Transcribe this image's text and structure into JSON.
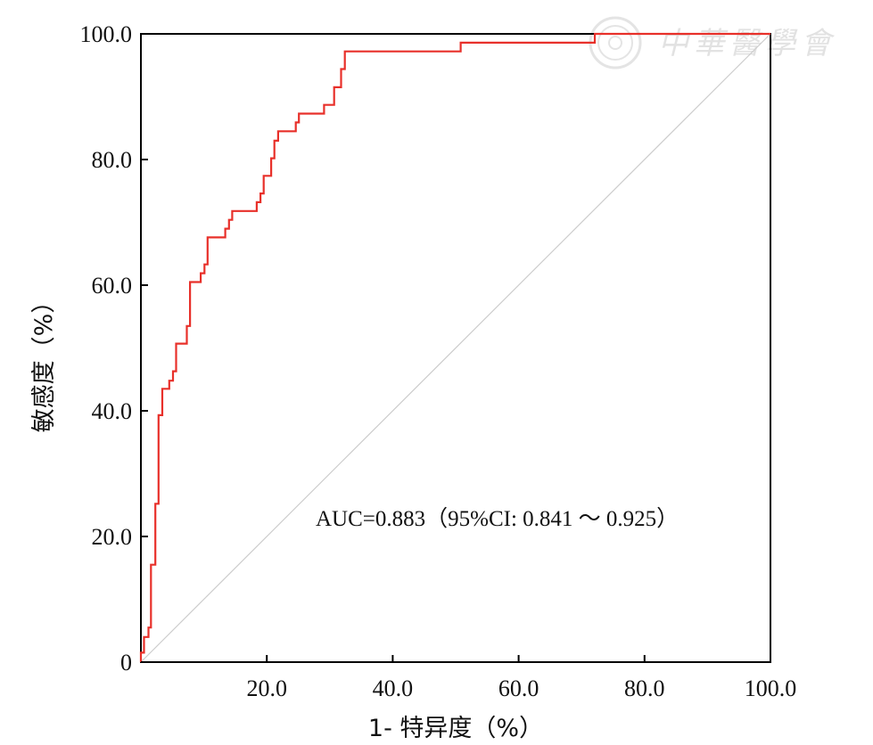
{
  "chart_data": {
    "type": "line",
    "xlabel": "1- 特异度（%）",
    "ylabel": "敏感度（%）",
    "xlim": [
      0,
      100
    ],
    "ylim": [
      0,
      100
    ],
    "x_ticks": [
      {
        "value": 20,
        "label": "20.0"
      },
      {
        "value": 40,
        "label": "40.0"
      },
      {
        "value": 60,
        "label": "60.0"
      },
      {
        "value": 80,
        "label": "80.0"
      },
      {
        "value": 100,
        "label": "100.0"
      }
    ],
    "y_ticks": [
      {
        "value": 0,
        "label": "0"
      },
      {
        "value": 20,
        "label": "20.0"
      },
      {
        "value": 40,
        "label": "40.0"
      },
      {
        "value": 60,
        "label": "60.0"
      },
      {
        "value": 80,
        "label": "80.0"
      },
      {
        "value": 100,
        "label": "100.0"
      }
    ],
    "grid": false,
    "annotation": "AUC=0.883（95%CI: 0.841 ～ 0.925）",
    "series": [
      {
        "color": "#e8302a",
        "step": true,
        "points": [
          [
            0,
            0
          ],
          [
            0,
            1.5
          ],
          [
            0.5,
            1.5
          ],
          [
            0.5,
            4
          ],
          [
            1.2,
            4
          ],
          [
            1.2,
            5.5
          ],
          [
            1.6,
            5.5
          ],
          [
            1.6,
            15.5
          ],
          [
            2.3,
            15.5
          ],
          [
            2.3,
            25.2
          ],
          [
            2.8,
            25.2
          ],
          [
            2.8,
            39.3
          ],
          [
            3.4,
            39.3
          ],
          [
            3.4,
            43.5
          ],
          [
            4.5,
            43.5
          ],
          [
            4.5,
            44.8
          ],
          [
            5.1,
            44.8
          ],
          [
            5.1,
            46.3
          ],
          [
            5.6,
            46.3
          ],
          [
            5.6,
            50.7
          ],
          [
            7.3,
            50.7
          ],
          [
            7.3,
            53.5
          ],
          [
            7.8,
            53.5
          ],
          [
            7.8,
            60.5
          ],
          [
            9.5,
            60.5
          ],
          [
            9.5,
            61.9
          ],
          [
            10.1,
            61.9
          ],
          [
            10.1,
            63.3
          ],
          [
            10.6,
            63.3
          ],
          [
            10.6,
            67.6
          ],
          [
            13.4,
            67.6
          ],
          [
            13.4,
            69
          ],
          [
            14,
            69
          ],
          [
            14,
            70.4
          ],
          [
            14.5,
            70.4
          ],
          [
            14.5,
            71.8
          ],
          [
            18.4,
            71.8
          ],
          [
            18.4,
            73.2
          ],
          [
            19,
            73.2
          ],
          [
            19,
            74.6
          ],
          [
            19.5,
            74.6
          ],
          [
            19.5,
            77.4
          ],
          [
            20.7,
            77.4
          ],
          [
            20.7,
            80.2
          ],
          [
            21.2,
            80.2
          ],
          [
            21.2,
            83
          ],
          [
            21.8,
            83
          ],
          [
            21.8,
            84.5
          ],
          [
            24.6,
            84.5
          ],
          [
            24.6,
            85.9
          ],
          [
            25.1,
            85.9
          ],
          [
            25.1,
            87.3
          ],
          [
            29.1,
            87.3
          ],
          [
            29.1,
            88.7
          ],
          [
            30.7,
            88.7
          ],
          [
            30.7,
            91.5
          ],
          [
            31.8,
            91.5
          ],
          [
            31.8,
            94.4
          ],
          [
            32.4,
            94.4
          ],
          [
            32.4,
            97.2
          ],
          [
            50.8,
            97.2
          ],
          [
            50.8,
            98.6
          ],
          [
            72.1,
            98.6
          ],
          [
            72.1,
            100
          ],
          [
            100,
            100
          ]
        ]
      }
    ],
    "reference_line": {
      "color": "#cccccc",
      "from": [
        0,
        0
      ],
      "to": [
        100,
        100
      ]
    }
  },
  "watermark": {
    "icon": "society-seal-icon",
    "text": "中華醫學會"
  }
}
